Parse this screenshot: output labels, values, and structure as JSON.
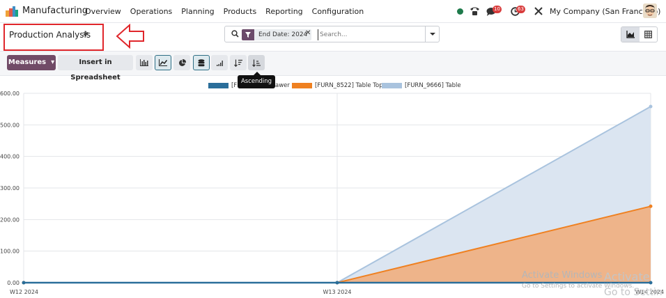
{
  "topbar": {
    "app_name": "Manufacturing",
    "menu": [
      "Overview",
      "Operations",
      "Planning",
      "Products",
      "Reporting",
      "Configuration"
    ],
    "messages_count": "10",
    "activities_count": "63",
    "company": "My Company (San Francisco)"
  },
  "control": {
    "page_title": "Production Analysis",
    "facet_label": "End Date: 2024",
    "search_placeholder": "Search..."
  },
  "toolbar": {
    "measures_label": "Measures",
    "spreadsheet_label": "Insert in Spreadsheet",
    "tooltip": "Ascending"
  },
  "colors": {
    "brand": "#714b67",
    "series1": "#2a6e9a",
    "series2": "#ef8020",
    "series3": "#a9c3de",
    "annotation": "#e0262b"
  },
  "watermark": {
    "line1": "Activate Windows",
    "line2": "Go to Settings to activate Windows.",
    "line3": "Activate",
    "line4": "Go to Settin"
  },
  "chart_data": {
    "type": "area",
    "categories": [
      "W12 2024",
      "W13 2024",
      "W14 2024"
    ],
    "ylim": [
      0,
      600
    ],
    "yticks": [
      "0.00",
      "100.00",
      "200.00",
      "300.00",
      "400.00",
      "500.00",
      "600.00"
    ],
    "grid": true,
    "legend_position": "top-center",
    "series": [
      {
        "name": "[F",
        "name_tail": "awer",
        "values": [
          0,
          0,
          0
        ]
      },
      {
        "name": "[FURN_8522] Table Top",
        "values": [
          0,
          0,
          242
        ]
      },
      {
        "name": "[FURN_9666] Table",
        "values": [
          0,
          0,
          558
        ]
      }
    ]
  }
}
